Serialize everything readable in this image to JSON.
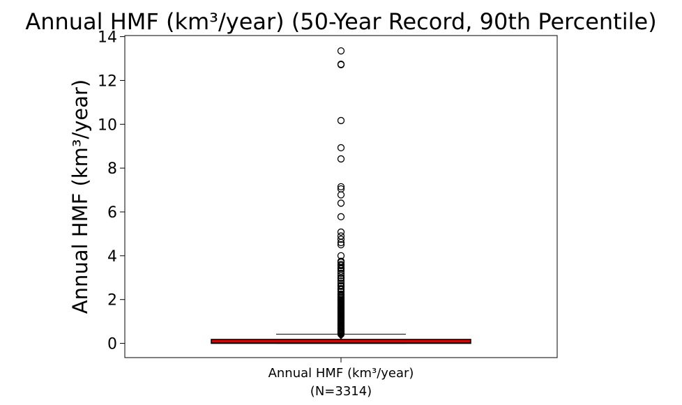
{
  "chart_data": {
    "type": "box",
    "title": "Annual HMF (km³/year) (50-Year Record, 90th Percentile)",
    "ylabel": "Annual HMF (km³/year)",
    "xlabel": "",
    "categories": [
      "Annual HMF (km³/year)\n(N=3314)"
    ],
    "category_label": {
      "line1": "Annual HMF (km³/year)",
      "line2": "(N=3314)"
    },
    "n": 3314,
    "ylim": [
      -0.65,
      14.05
    ],
    "yticks": [
      0,
      2,
      4,
      6,
      8,
      10,
      12,
      14
    ],
    "grid": false,
    "legend": "none",
    "box": {
      "whislo": 0.0,
      "q1": 0.0,
      "med": 0.02,
      "q3": 0.18,
      "whishi": 0.42,
      "mean": 0.35
    },
    "fliers": [
      13.35,
      12.72,
      12.74,
      10.17,
      8.93,
      8.42,
      7.15,
      7.05,
      6.78,
      6.4,
      5.78,
      5.08,
      4.9,
      4.75,
      4.6,
      4.5,
      4.0,
      3.75,
      3.7,
      3.6,
      3.55,
      3.45,
      3.4,
      3.3,
      3.2,
      3.1,
      3.0,
      2.95,
      2.85,
      2.75,
      2.65,
      2.6,
      2.5,
      2.45,
      2.35,
      2.25,
      2.2,
      2.15,
      2.1,
      2.05,
      2.0,
      1.95,
      1.9,
      1.85,
      1.8,
      1.75,
      1.7,
      1.65,
      1.6,
      1.55,
      1.5,
      1.45,
      1.4,
      1.35,
      1.3,
      1.25,
      1.2,
      1.15,
      1.1,
      1.05,
      1.0,
      0.95,
      0.9,
      0.85,
      0.8,
      0.75,
      0.7,
      0.66,
      0.62,
      0.58,
      0.55,
      0.52,
      0.49,
      0.46,
      0.44
    ],
    "colors": {
      "box_fill": "#e00000",
      "box_edge": "#000000",
      "median": "#000000",
      "mean_marker": "#000000",
      "flier_edge": "#000000"
    }
  }
}
